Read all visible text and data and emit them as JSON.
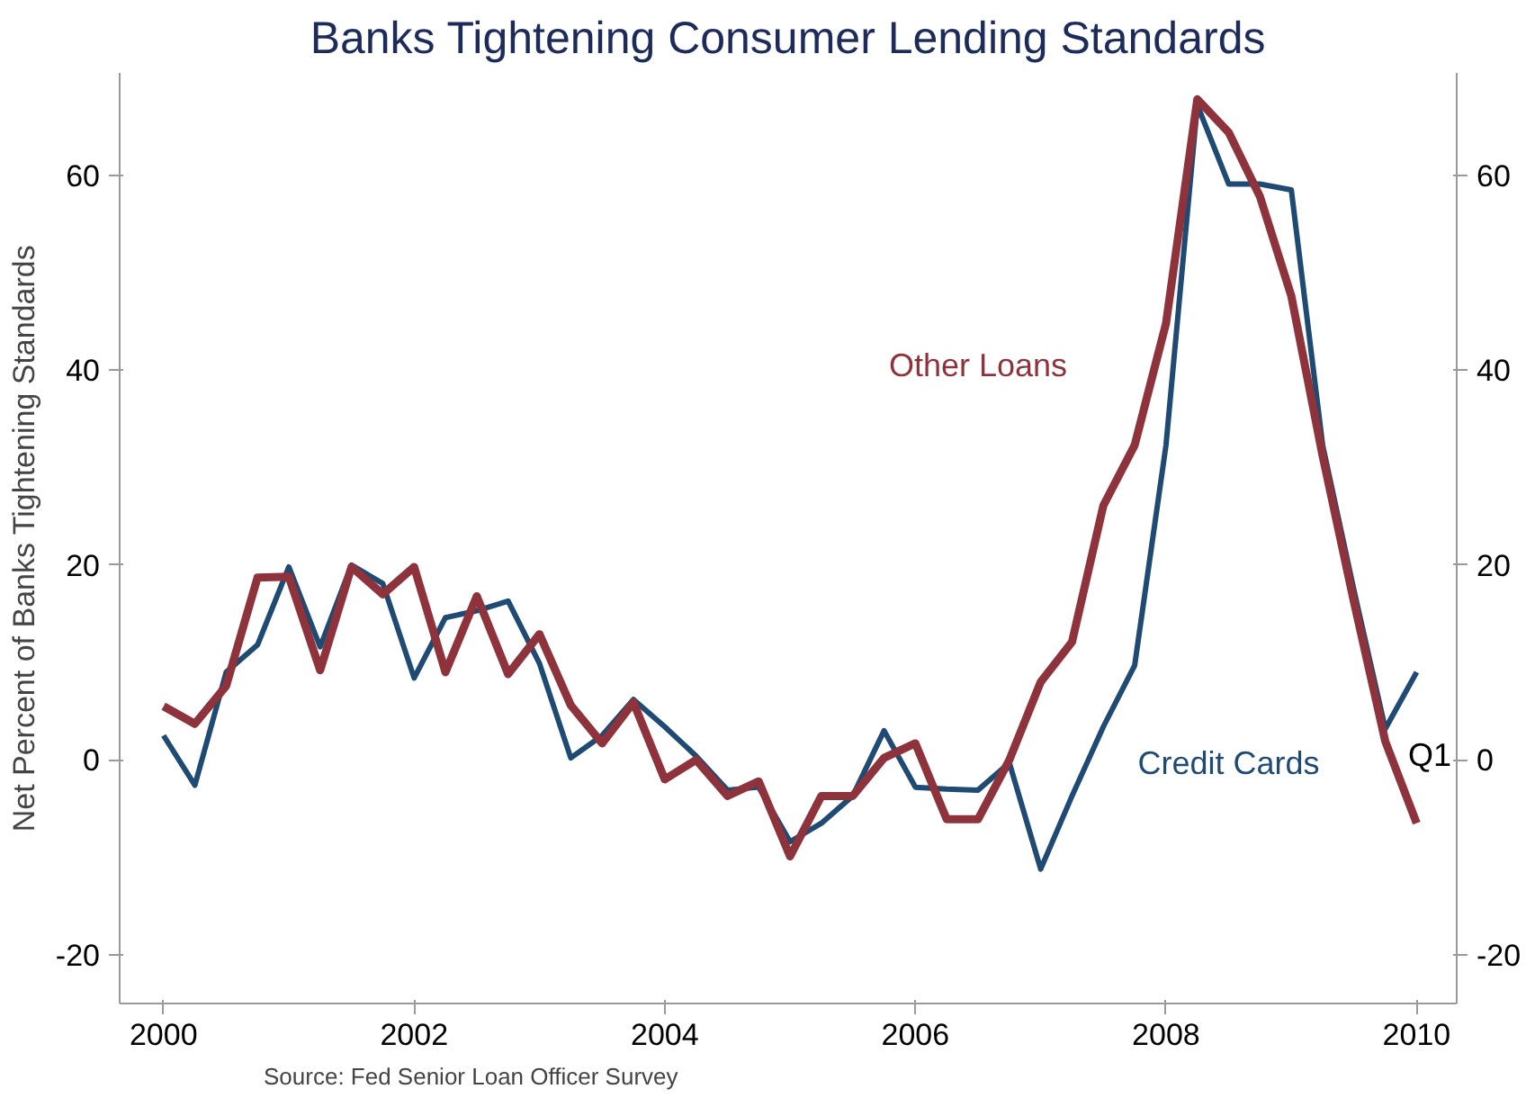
{
  "chart_data": {
    "type": "line",
    "title": "Banks Tightening Consumer Lending Standards",
    "ylabel": "Net Percent of Banks Tightening Standards",
    "x": [
      2000,
      2000.25,
      2000.5,
      2000.75,
      2001,
      2001.25,
      2001.5,
      2001.75,
      2002,
      2002.25,
      2002.5,
      2002.75,
      2003,
      2003.25,
      2003.5,
      2003.75,
      2004,
      2004.25,
      2004.5,
      2004.75,
      2005,
      2005.25,
      2005.5,
      2005.75,
      2006,
      2006.25,
      2006.5,
      2006.75,
      2007,
      2007.25,
      2007.5,
      2007.75,
      2008,
      2008.25,
      2008.5,
      2008.75,
      2009,
      2009.25,
      2009.5,
      2009.75,
      2010
    ],
    "series": [
      {
        "name": "Credit Cards",
        "color": "#1f4a73",
        "values": [
          2.5,
          -2.6,
          9.0,
          11.8,
          19.8,
          11.6,
          20.0,
          18.1,
          8.4,
          14.6,
          15.3,
          16.3,
          9.9,
          0.2,
          2.5,
          6.2,
          3.4,
          0.4,
          -3.1,
          -2.8,
          -8.4,
          -6.5,
          -3.7,
          3.0,
          -2.8,
          -3.0,
          -3.1,
          -0.3,
          -11.2,
          -3.7,
          3.4,
          9.7,
          32.3,
          67.2,
          59.1,
          59.1,
          58.5,
          32.3,
          17.4,
          3.2,
          9.0
        ]
      },
      {
        "name": "Other Loans",
        "color": "#8e323c",
        "values": [
          5.5,
          3.7,
          7.6,
          18.7,
          18.8,
          9.2,
          19.8,
          17.0,
          19.8,
          9.0,
          16.8,
          8.8,
          12.9,
          5.6,
          1.7,
          5.9,
          -2.0,
          0.0,
          -3.7,
          -2.2,
          -9.9,
          -3.7,
          -3.7,
          0.2,
          1.7,
          -6.1,
          -6.1,
          0.0,
          8.0,
          12.1,
          26.1,
          32.3,
          44.8,
          67.8,
          64.4,
          57.8,
          47.6,
          31.2,
          16.2,
          1.9,
          -6.5
        ]
      }
    ],
    "xlim": [
      1999.65,
      2010.32
    ],
    "xticks": [
      2000,
      2002,
      2004,
      2006,
      2008,
      2010
    ],
    "ylim": [
      -25,
      70.5
    ],
    "yticks": [
      -20,
      0,
      20,
      40,
      60
    ],
    "y2lim": [
      -25,
      70.5
    ],
    "y2ticks": [
      -20,
      0,
      20,
      40,
      60
    ],
    "grid": false,
    "annotations": [
      "Q1",
      "Source: Fed Senior Loan Officer Survey"
    ]
  }
}
